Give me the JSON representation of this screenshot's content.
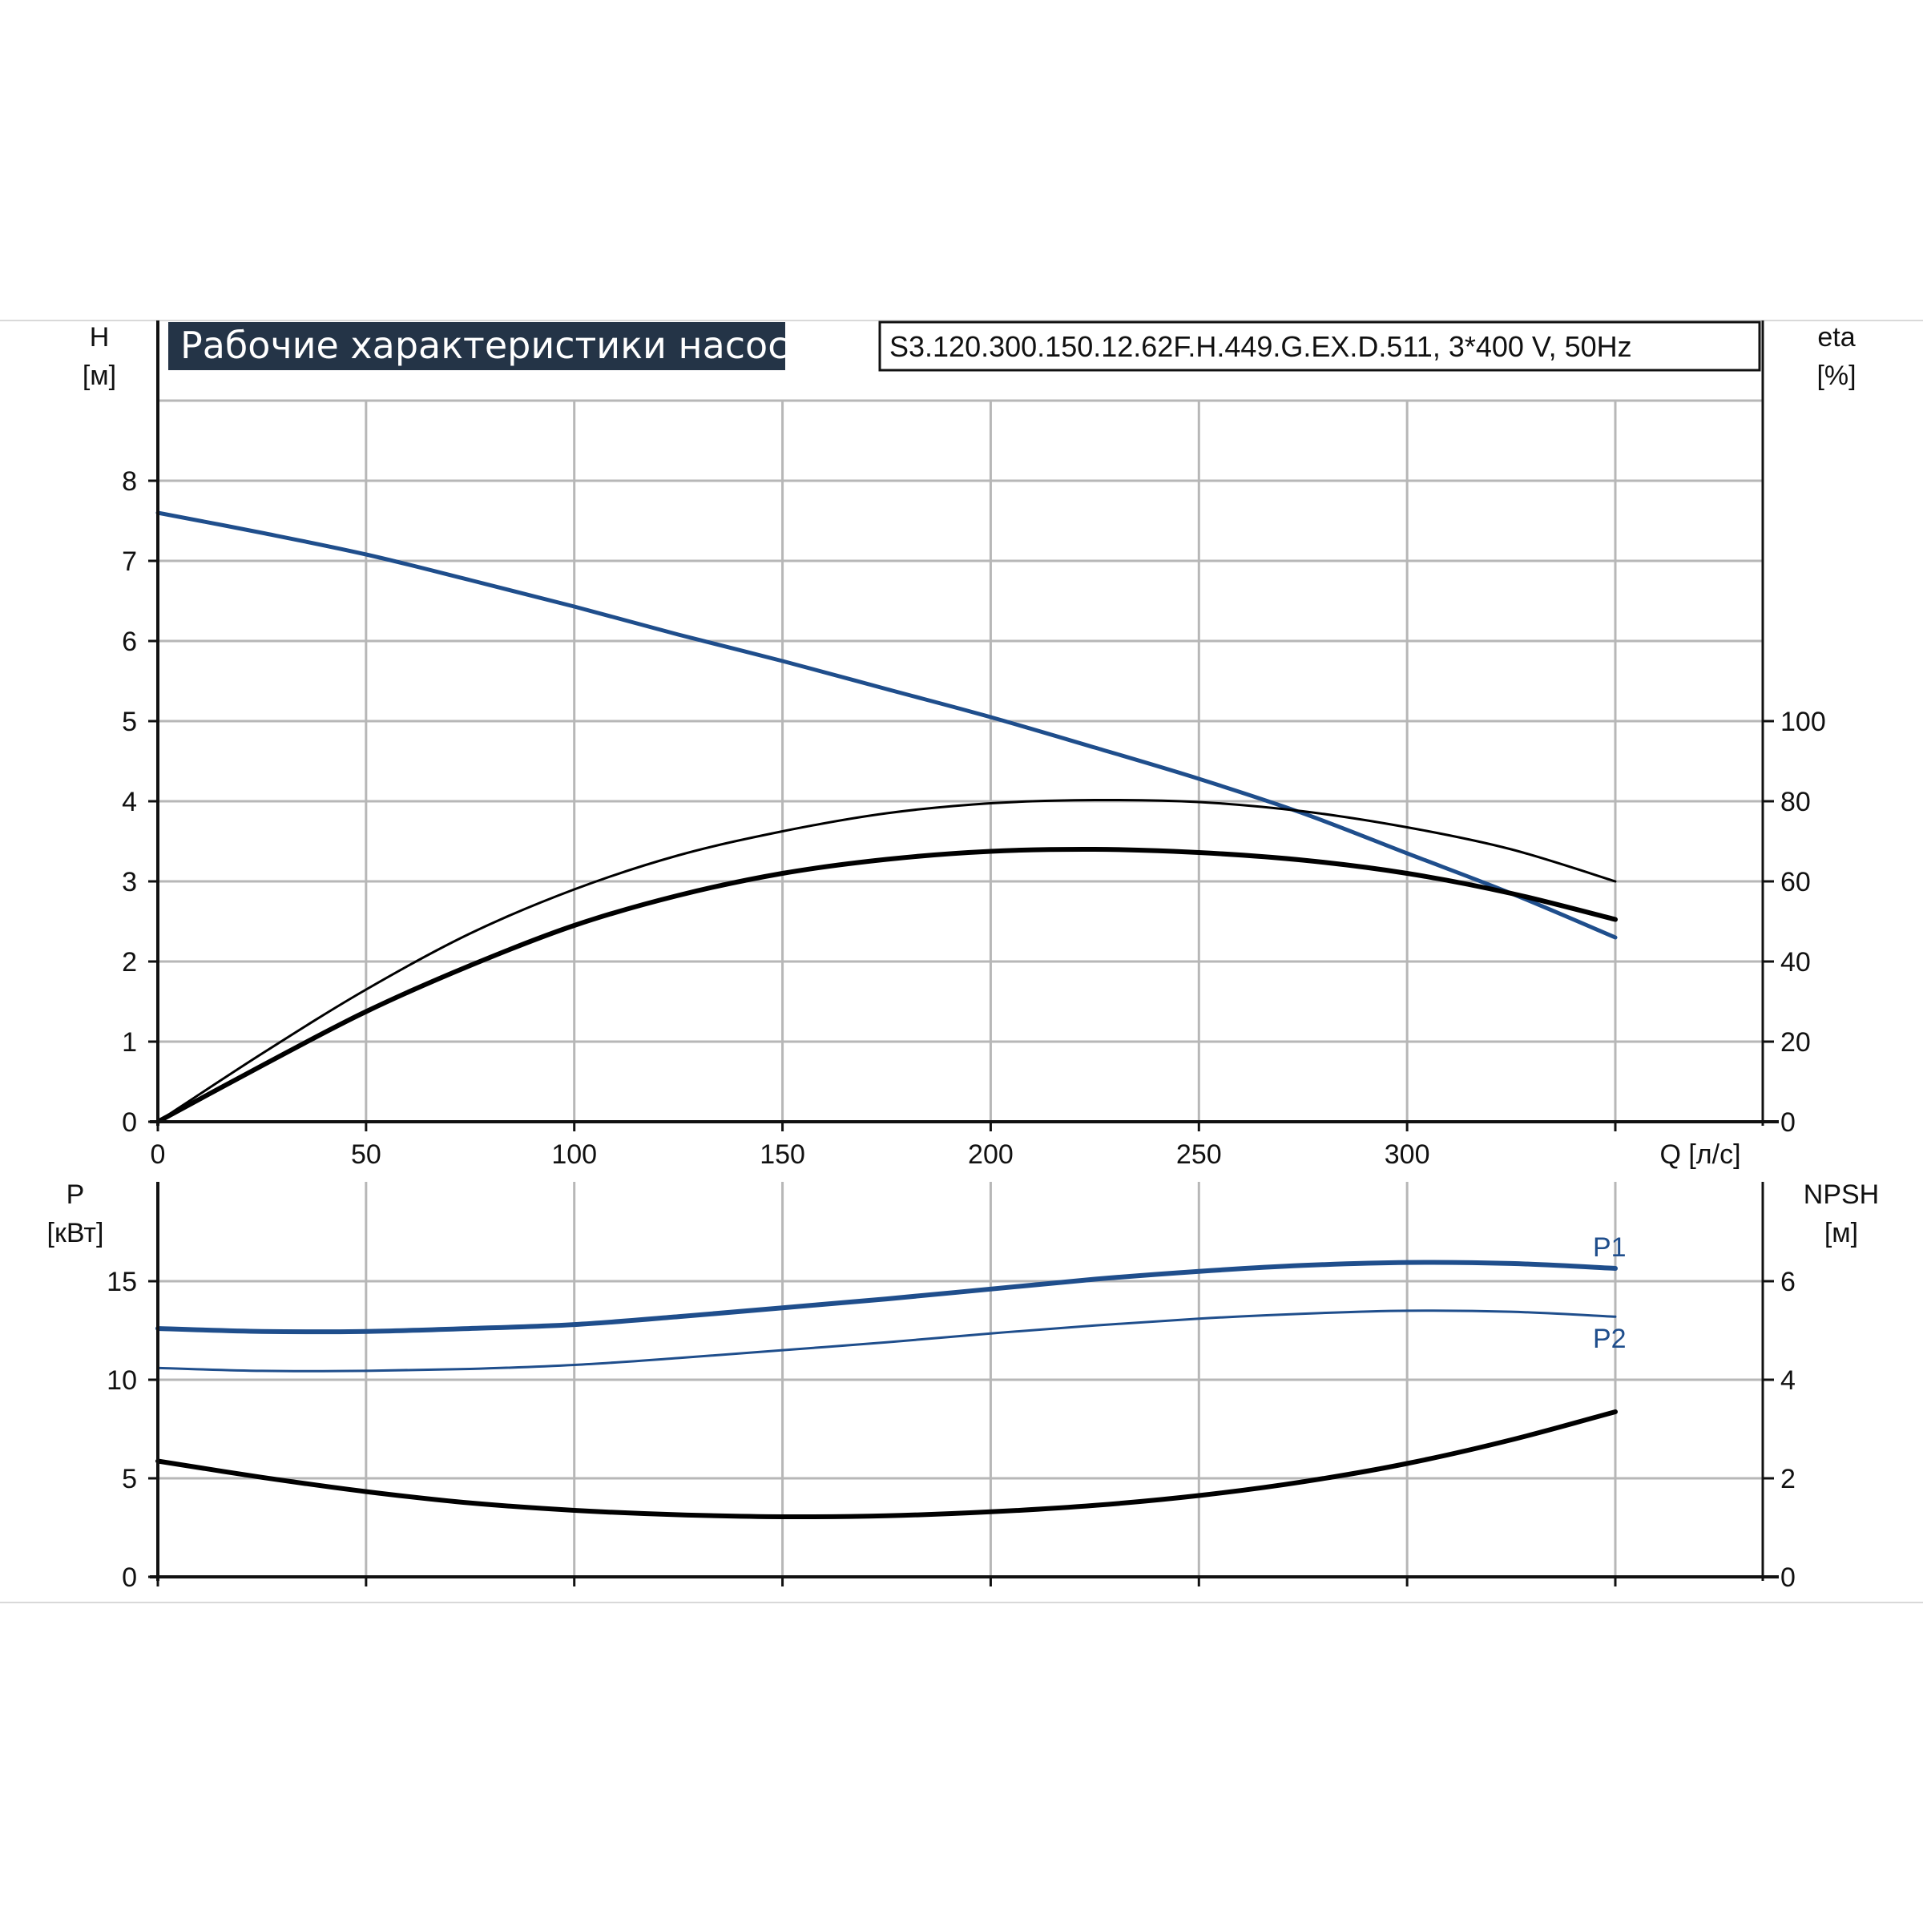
{
  "title": "Рабочие характеристики насоса",
  "model": "S3.120.300.150.12.62F.H.449.G.EX.D.511, 3*400 V, 50Hz",
  "colors": {
    "blue": "#1f4e8c",
    "black": "#000000",
    "title_bg": "#243447",
    "grid": "#b7b7b7"
  },
  "chart_data": [
    {
      "type": "line",
      "name": "head-efficiency",
      "x_axis": {
        "label": "Q [л/с]",
        "range": [
          0,
          350
        ],
        "ticks": [
          0,
          50,
          100,
          150,
          200,
          250,
          300
        ]
      },
      "y_axis_left": {
        "label_name": "H",
        "label_unit": "[м]",
        "range": [
          0,
          9
        ],
        "ticks": [
          0,
          1,
          2,
          3,
          4,
          5,
          6,
          7,
          8
        ]
      },
      "y_axis_right": {
        "label_name": "eta",
        "label_unit": "[%]",
        "range": [
          0,
          180
        ],
        "ticks": [
          0,
          20,
          40,
          60,
          80,
          100
        ]
      },
      "grid": true,
      "series": [
        {
          "axis": "left",
          "color": "#1f4e8c",
          "width": 5,
          "x": [
            0,
            25,
            50,
            75,
            100,
            125,
            150,
            175,
            200,
            225,
            250,
            275,
            300,
            325,
            350
          ],
          "y": [
            7.6,
            7.35,
            7.08,
            6.76,
            6.43,
            6.08,
            5.75,
            5.4,
            5.05,
            4.67,
            4.28,
            3.85,
            3.35,
            2.85,
            2.3
          ]
        },
        {
          "axis": "right",
          "color": "#000000",
          "width": 3,
          "x": [
            0,
            25,
            50,
            75,
            100,
            125,
            150,
            175,
            200,
            225,
            250,
            275,
            300,
            325,
            350
          ],
          "y": [
            0,
            17,
            33,
            47,
            58,
            66.5,
            72.5,
            77,
            79.5,
            80.3,
            79.8,
            77.5,
            73.5,
            68,
            60
          ]
        },
        {
          "axis": "right",
          "color": "#000000",
          "width": 6,
          "x": [
            0,
            25,
            50,
            75,
            100,
            125,
            150,
            175,
            200,
            225,
            250,
            275,
            300,
            325,
            350
          ],
          "y": [
            0,
            14,
            27.5,
            39,
            49,
            56.5,
            62,
            65.5,
            67.5,
            68,
            67.2,
            65.3,
            62,
            57,
            50.5
          ]
        }
      ]
    },
    {
      "type": "line",
      "name": "power-npsh",
      "x_axis": {
        "range": [
          0,
          350
        ],
        "ticks": []
      },
      "y_axis_left": {
        "label_name": "P",
        "label_unit": "[кВт]",
        "range": [
          0,
          20
        ],
        "ticks": [
          0,
          5,
          10,
          15
        ]
      },
      "y_axis_right": {
        "label_name": "NPSH",
        "label_unit": "[м]",
        "range": [
          0,
          8
        ],
        "ticks": [
          0,
          2,
          4,
          6
        ]
      },
      "grid": true,
      "series": [
        {
          "name": "P1",
          "axis": "left",
          "color": "#1f4e8c",
          "width": 6,
          "x": [
            0,
            25,
            50,
            75,
            100,
            125,
            150,
            175,
            200,
            225,
            250,
            275,
            300,
            325,
            350
          ],
          "y": [
            12.6,
            12.45,
            12.45,
            12.6,
            12.8,
            13.2,
            13.65,
            14.1,
            14.6,
            15.1,
            15.5,
            15.8,
            15.95,
            15.9,
            15.65
          ]
        },
        {
          "name": "P2",
          "axis": "left",
          "color": "#1f4e8c",
          "width": 3,
          "x": [
            0,
            25,
            50,
            75,
            100,
            125,
            150,
            175,
            200,
            225,
            250,
            275,
            300,
            325,
            350
          ],
          "y": [
            10.6,
            10.45,
            10.45,
            10.55,
            10.75,
            11.1,
            11.5,
            11.9,
            12.35,
            12.75,
            13.1,
            13.35,
            13.5,
            13.45,
            13.2
          ]
        },
        {
          "axis": "right",
          "color": "#000000",
          "width": 6,
          "x": [
            0,
            25,
            50,
            75,
            100,
            125,
            150,
            175,
            200,
            225,
            250,
            275,
            300,
            325,
            350
          ],
          "y": [
            2.35,
            2.02,
            1.73,
            1.5,
            1.35,
            1.26,
            1.22,
            1.24,
            1.32,
            1.45,
            1.65,
            1.93,
            2.3,
            2.78,
            3.35
          ]
        }
      ]
    }
  ]
}
